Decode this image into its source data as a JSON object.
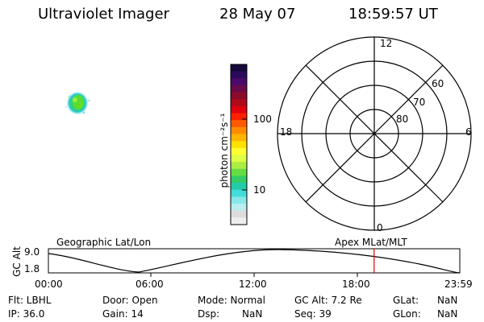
{
  "header": {
    "title": "Ultraviolet Imager",
    "date": "28 May 07",
    "time": "18:59:57 UT"
  },
  "colorbar": {
    "label": "photon cm⁻²s⁻¹",
    "ticks": [
      "100",
      "10"
    ]
  },
  "polar": {
    "mlt_labels": [
      "12",
      "18",
      "6",
      "0"
    ],
    "lat_labels": [
      "60",
      "70",
      "80"
    ]
  },
  "timeline": {
    "y_label": "GC Alt",
    "y_ticks": [
      "9.0",
      "1.8"
    ],
    "left_caption": "Geographic Lat/Lon",
    "right_caption": "Apex MLat/MLT",
    "x_ticks": [
      "00:00",
      "06:00",
      "12:00",
      "18:00",
      "23:59"
    ],
    "marker_fraction_of_day": 0.7917,
    "marker_color": "#e00000"
  },
  "info": {
    "row1": {
      "flt": "Flt: LBHL",
      "door": "Door: Open",
      "mode": "Mode: Normal",
      "gc_alt": "GC Alt: 7.2 Re",
      "glat_label": "GLat:",
      "glat_value": "NaN"
    },
    "row2": {
      "ip": "IP: 36.0",
      "gain": "Gain: 14",
      "dsp_label": "Dsp:",
      "dsp_value": "NaN",
      "seq": "Seq: 39",
      "glon_label": "GLon:",
      "glon_value": "NaN"
    }
  }
}
